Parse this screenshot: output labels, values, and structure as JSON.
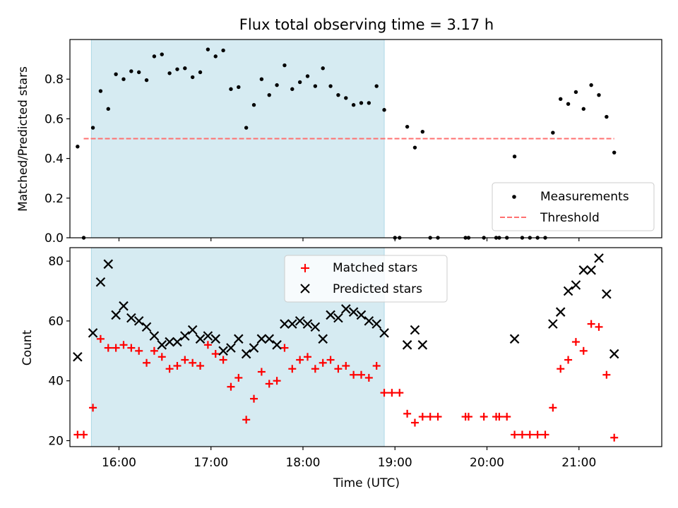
{
  "chart_data": [
    {
      "panel": "top",
      "type": "scatter",
      "title": "Flux total observing time = 3.17 h",
      "xlabel": "",
      "ylabel": "Matched/Predicted stars",
      "xlim": [
        "15:28",
        "21:54"
      ],
      "ylim": [
        0,
        1.0
      ],
      "yticks": [
        0.0,
        0.2,
        0.4,
        0.6,
        0.8
      ],
      "shaded_interval": [
        "15:42",
        "18:53"
      ],
      "colors": {
        "shade": "#add8e6",
        "measurements": "#000000",
        "threshold": "#ff7070"
      },
      "legend": {
        "placement": "lower-right",
        "entries": [
          "Measurements",
          "Threshold"
        ]
      },
      "threshold": {
        "name": "Threshold",
        "value": 0.5,
        "x": [
          "15:37",
          "21:23"
        ]
      },
      "series": [
        {
          "name": "Measurements",
          "marker": "dot",
          "points": [
            [
              "15:33",
              0.46
            ],
            [
              "15:37",
              0.0
            ],
            [
              "15:43",
              0.555
            ],
            [
              "15:48",
              0.74
            ],
            [
              "15:53",
              0.65
            ],
            [
              "15:58",
              0.825
            ],
            [
              "16:03",
              0.8
            ],
            [
              "16:08",
              0.84
            ],
            [
              "16:13",
              0.835
            ],
            [
              "16:18",
              0.795
            ],
            [
              "16:23",
              0.915
            ],
            [
              "16:28",
              0.925
            ],
            [
              "16:33",
              0.83
            ],
            [
              "16:38",
              0.85
            ],
            [
              "16:43",
              0.855
            ],
            [
              "16:48",
              0.81
            ],
            [
              "16:53",
              0.835
            ],
            [
              "16:58",
              0.95
            ],
            [
              "17:03",
              0.915
            ],
            [
              "17:08",
              0.945
            ],
            [
              "17:13",
              0.75
            ],
            [
              "17:18",
              0.76
            ],
            [
              "17:23",
              0.555
            ],
            [
              "17:28",
              0.67
            ],
            [
              "17:33",
              0.8
            ],
            [
              "17:38",
              0.72
            ],
            [
              "17:43",
              0.77
            ],
            [
              "17:48",
              0.87
            ],
            [
              "17:53",
              0.75
            ],
            [
              "17:58",
              0.785
            ],
            [
              "18:03",
              0.815
            ],
            [
              "18:08",
              0.765
            ],
            [
              "18:13",
              0.855
            ],
            [
              "18:18",
              0.765
            ],
            [
              "18:23",
              0.72
            ],
            [
              "18:28",
              0.705
            ],
            [
              "18:33",
              0.67
            ],
            [
              "18:38",
              0.68
            ],
            [
              "18:43",
              0.68
            ],
            [
              "18:48",
              0.765
            ],
            [
              "18:53",
              0.645
            ],
            [
              "19:00",
              0.0
            ],
            [
              "19:03",
              0.0
            ],
            [
              "19:08",
              0.56
            ],
            [
              "19:13",
              0.455
            ],
            [
              "19:18",
              0.535
            ],
            [
              "19:23",
              0.0
            ],
            [
              "19:28",
              0.0
            ],
            [
              "19:46",
              0.0
            ],
            [
              "19:48",
              0.0
            ],
            [
              "19:58",
              0.0
            ],
            [
              "20:06",
              0.0
            ],
            [
              "20:08",
              0.0
            ],
            [
              "20:13",
              0.0
            ],
            [
              "20:18",
              0.41
            ],
            [
              "20:23",
              0.0
            ],
            [
              "20:28",
              0.0
            ],
            [
              "20:33",
              0.0
            ],
            [
              "20:38",
              0.0
            ],
            [
              "20:43",
              0.53
            ],
            [
              "20:48",
              0.7
            ],
            [
              "20:53",
              0.675
            ],
            [
              "20:58",
              0.735
            ],
            [
              "21:03",
              0.65
            ],
            [
              "21:08",
              0.77
            ],
            [
              "21:13",
              0.72
            ],
            [
              "21:18",
              0.61
            ],
            [
              "21:23",
              0.43
            ]
          ]
        }
      ]
    },
    {
      "panel": "bottom",
      "type": "scatter",
      "title": "",
      "xlabel": "Time (UTC)",
      "ylabel": "Count",
      "xlim": [
        "15:28",
        "21:54"
      ],
      "ylim": [
        18,
        84.5
      ],
      "yticks": [
        20,
        40,
        60,
        80
      ],
      "xticks": [
        "16:00",
        "17:00",
        "18:00",
        "19:00",
        "20:00",
        "21:00"
      ],
      "shaded_interval": [
        "15:42",
        "18:53"
      ],
      "colors": {
        "matched": "#ff0000",
        "predicted": "#000000"
      },
      "legend": {
        "placement": "upper-center",
        "entries": [
          "Matched stars",
          "Predicted stars"
        ]
      },
      "series": [
        {
          "name": "Matched stars",
          "marker": "plus",
          "points": [
            [
              "15:33",
              22
            ],
            [
              "15:37",
              22
            ],
            [
              "15:43",
              31
            ],
            [
              "15:48",
              54
            ],
            [
              "15:53",
              51
            ],
            [
              "15:58",
              51
            ],
            [
              "16:03",
              52
            ],
            [
              "16:08",
              51
            ],
            [
              "16:13",
              50
            ],
            [
              "16:18",
              46
            ],
            [
              "16:23",
              50
            ],
            [
              "16:28",
              48
            ],
            [
              "16:33",
              44
            ],
            [
              "16:38",
              45
            ],
            [
              "16:43",
              47
            ],
            [
              "16:48",
              46
            ],
            [
              "16:53",
              45
            ],
            [
              "16:58",
              52
            ],
            [
              "17:03",
              49
            ],
            [
              "17:08",
              47
            ],
            [
              "17:13",
              38
            ],
            [
              "17:18",
              41
            ],
            [
              "17:23",
              27
            ],
            [
              "17:28",
              34
            ],
            [
              "17:33",
              43
            ],
            [
              "17:38",
              39
            ],
            [
              "17:43",
              40
            ],
            [
              "17:48",
              51
            ],
            [
              "17:53",
              44
            ],
            [
              "17:58",
              47
            ],
            [
              "18:03",
              48
            ],
            [
              "18:08",
              44
            ],
            [
              "18:13",
              46
            ],
            [
              "18:18",
              47
            ],
            [
              "18:23",
              44
            ],
            [
              "18:28",
              45
            ],
            [
              "18:33",
              42
            ],
            [
              "18:38",
              42
            ],
            [
              "18:43",
              41
            ],
            [
              "18:48",
              45
            ],
            [
              "18:53",
              36
            ],
            [
              "18:58",
              36
            ],
            [
              "19:03",
              36
            ],
            [
              "19:08",
              29
            ],
            [
              "19:13",
              26
            ],
            [
              "19:18",
              28
            ],
            [
              "19:23",
              28
            ],
            [
              "19:28",
              28
            ],
            [
              "19:46",
              28
            ],
            [
              "19:48",
              28
            ],
            [
              "19:58",
              28
            ],
            [
              "20:06",
              28
            ],
            [
              "20:08",
              28
            ],
            [
              "20:13",
              28
            ],
            [
              "20:18",
              22
            ],
            [
              "20:23",
              22
            ],
            [
              "20:28",
              22
            ],
            [
              "20:33",
              22
            ],
            [
              "20:38",
              22
            ],
            [
              "20:43",
              31
            ],
            [
              "20:48",
              44
            ],
            [
              "20:53",
              47
            ],
            [
              "20:58",
              53
            ],
            [
              "21:03",
              50
            ],
            [
              "21:08",
              59
            ],
            [
              "21:13",
              58
            ],
            [
              "21:18",
              42
            ],
            [
              "21:23",
              21
            ]
          ]
        },
        {
          "name": "Predicted stars",
          "marker": "x",
          "points": [
            [
              "15:33",
              48
            ],
            [
              "15:43",
              56
            ],
            [
              "15:48",
              73
            ],
            [
              "15:53",
              79
            ],
            [
              "15:58",
              62
            ],
            [
              "16:03",
              65
            ],
            [
              "16:08",
              61
            ],
            [
              "16:13",
              60
            ],
            [
              "16:18",
              58
            ],
            [
              "16:23",
              55
            ],
            [
              "16:28",
              52
            ],
            [
              "16:33",
              53
            ],
            [
              "16:38",
              53
            ],
            [
              "16:43",
              55
            ],
            [
              "16:48",
              57
            ],
            [
              "16:53",
              54
            ],
            [
              "16:58",
              55
            ],
            [
              "17:03",
              54
            ],
            [
              "17:08",
              50
            ],
            [
              "17:13",
              51
            ],
            [
              "17:18",
              54
            ],
            [
              "17:23",
              49
            ],
            [
              "17:28",
              51
            ],
            [
              "17:33",
              54
            ],
            [
              "17:38",
              54
            ],
            [
              "17:43",
              52
            ],
            [
              "17:48",
              59
            ],
            [
              "17:53",
              59
            ],
            [
              "17:58",
              60
            ],
            [
              "18:03",
              59
            ],
            [
              "18:08",
              58
            ],
            [
              "18:13",
              54
            ],
            [
              "18:18",
              62
            ],
            [
              "18:23",
              61
            ],
            [
              "18:28",
              64
            ],
            [
              "18:33",
              63
            ],
            [
              "18:38",
              62
            ],
            [
              "18:43",
              60
            ],
            [
              "18:48",
              59
            ],
            [
              "18:53",
              56
            ],
            [
              "19:08",
              52
            ],
            [
              "19:13",
              57
            ],
            [
              "19:18",
              52
            ],
            [
              "20:18",
              54
            ],
            [
              "20:43",
              59
            ],
            [
              "20:48",
              63
            ],
            [
              "20:53",
              70
            ],
            [
              "20:58",
              72
            ],
            [
              "21:03",
              77
            ],
            [
              "21:08",
              77
            ],
            [
              "21:13",
              81
            ],
            [
              "21:18",
              69
            ],
            [
              "21:23",
              49
            ]
          ]
        }
      ]
    }
  ]
}
